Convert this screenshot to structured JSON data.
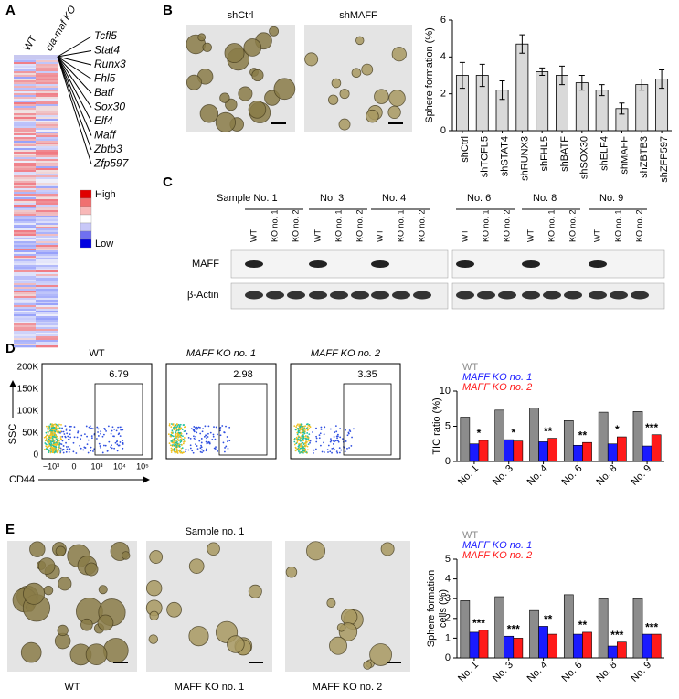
{
  "panel_labels": [
    "A",
    "B",
    "C",
    "D",
    "E"
  ],
  "heatmap": {
    "columns": [
      "WT",
      "cia-maf KO"
    ],
    "genes": [
      "Tcfl5",
      "Stat4",
      "Runx3",
      "Fhl5",
      "Batf",
      "Sox30",
      "Elf4",
      "Maff",
      "Zbtb3",
      "Zfp597"
    ],
    "legend": [
      "High",
      "Low"
    ]
  },
  "images_b": [
    "shCtrl",
    "shMAFF"
  ],
  "blot": {
    "samples": [
      "Sample No. 1",
      "No. 3",
      "No. 4",
      "No. 6",
      "No. 8",
      "No. 9"
    ],
    "lanes": [
      "WT",
      "KO no. 1",
      "KO no. 2"
    ],
    "rows": [
      "MAFF",
      "β-Actin"
    ]
  },
  "flow": {
    "titles": [
      "WT",
      "MAFF KO no. 1",
      "MAFF KO no. 2"
    ],
    "gates": [
      "6.79",
      "2.98",
      "3.35"
    ],
    "yticks": [
      "200K",
      "150K",
      "100K",
      "50K",
      "0"
    ],
    "xticks": [
      "−10³",
      "0",
      "10³",
      "10⁴",
      "10⁵"
    ],
    "ylabel": "SSC",
    "xlabel": "CD44"
  },
  "images_e": {
    "title": "Sample no. 1",
    "captions": [
      "WT",
      "MAFF KO no. 1",
      "MAFF KO no. 2"
    ]
  },
  "chart_data": [
    {
      "type": "bar",
      "ylabel": "Sphere formation (%)",
      "categories": [
        "shCtrl",
        "shTCFL5",
        "shSTAT4",
        "shRUNX3",
        "shFHL5",
        "shBATF",
        "shSOX30",
        "shELF4",
        "shMAFF",
        "shZBTB3",
        "shZFP597"
      ],
      "values": [
        3.0,
        3.0,
        2.2,
        4.7,
        3.2,
        3.0,
        2.6,
        2.2,
        1.2,
        2.5,
        2.8
      ],
      "errors": [
        0.7,
        0.6,
        0.5,
        0.5,
        0.2,
        0.5,
        0.4,
        0.3,
        0.3,
        0.3,
        0.5
      ],
      "color": "#d9d9d9",
      "ylim": [
        0,
        6
      ],
      "yticks": [
        0,
        2,
        4,
        6
      ]
    },
    {
      "type": "bar",
      "ylabel": "TIC ratio (%)",
      "categories": [
        "No. 1",
        "No. 3",
        "No. 4",
        "No. 6",
        "No. 8",
        "No. 9"
      ],
      "series": [
        {
          "name": "WT",
          "color": "#8c8c8c",
          "values": [
            6.3,
            7.3,
            7.6,
            5.8,
            7.0,
            7.1
          ]
        },
        {
          "name": "MAFF KO no. 1",
          "color": "#1a1aff",
          "values": [
            2.5,
            3.1,
            2.8,
            2.3,
            2.5,
            2.2
          ]
        },
        {
          "name": "MAFF KO no. 2",
          "color": "#ff1a1a",
          "values": [
            3.0,
            2.9,
            3.3,
            2.7,
            3.5,
            3.8
          ]
        }
      ],
      "annotations": [
        "*",
        "*",
        "**",
        "**",
        "*",
        "***"
      ],
      "legend": "upper left",
      "ylim": [
        0,
        10
      ],
      "yticks": [
        0,
        5,
        10
      ]
    },
    {
      "type": "bar",
      "ylabel": [
        "Sphere formation",
        "cells (%)"
      ],
      "categories": [
        "No. 1",
        "No. 3",
        "No. 4",
        "No. 6",
        "No. 8",
        "No. 9"
      ],
      "series": [
        {
          "name": "WT",
          "color": "#8c8c8c",
          "values": [
            2.9,
            3.1,
            2.4,
            3.2,
            3.0,
            3.0
          ]
        },
        {
          "name": "MAFF KO no. 1",
          "color": "#1a1aff",
          "values": [
            1.3,
            1.1,
            1.6,
            1.2,
            0.6,
            1.2
          ]
        },
        {
          "name": "MAFF KO no. 2",
          "color": "#ff1a1a",
          "values": [
            1.4,
            1.0,
            1.2,
            1.3,
            0.8,
            1.2
          ]
        }
      ],
      "annotations": [
        "***",
        "***",
        "**",
        "**",
        "***",
        "***"
      ],
      "legend": "upper left",
      "ylim": [
        0,
        5
      ],
      "yticks": [
        0,
        1,
        2,
        3,
        4,
        5
      ]
    }
  ]
}
